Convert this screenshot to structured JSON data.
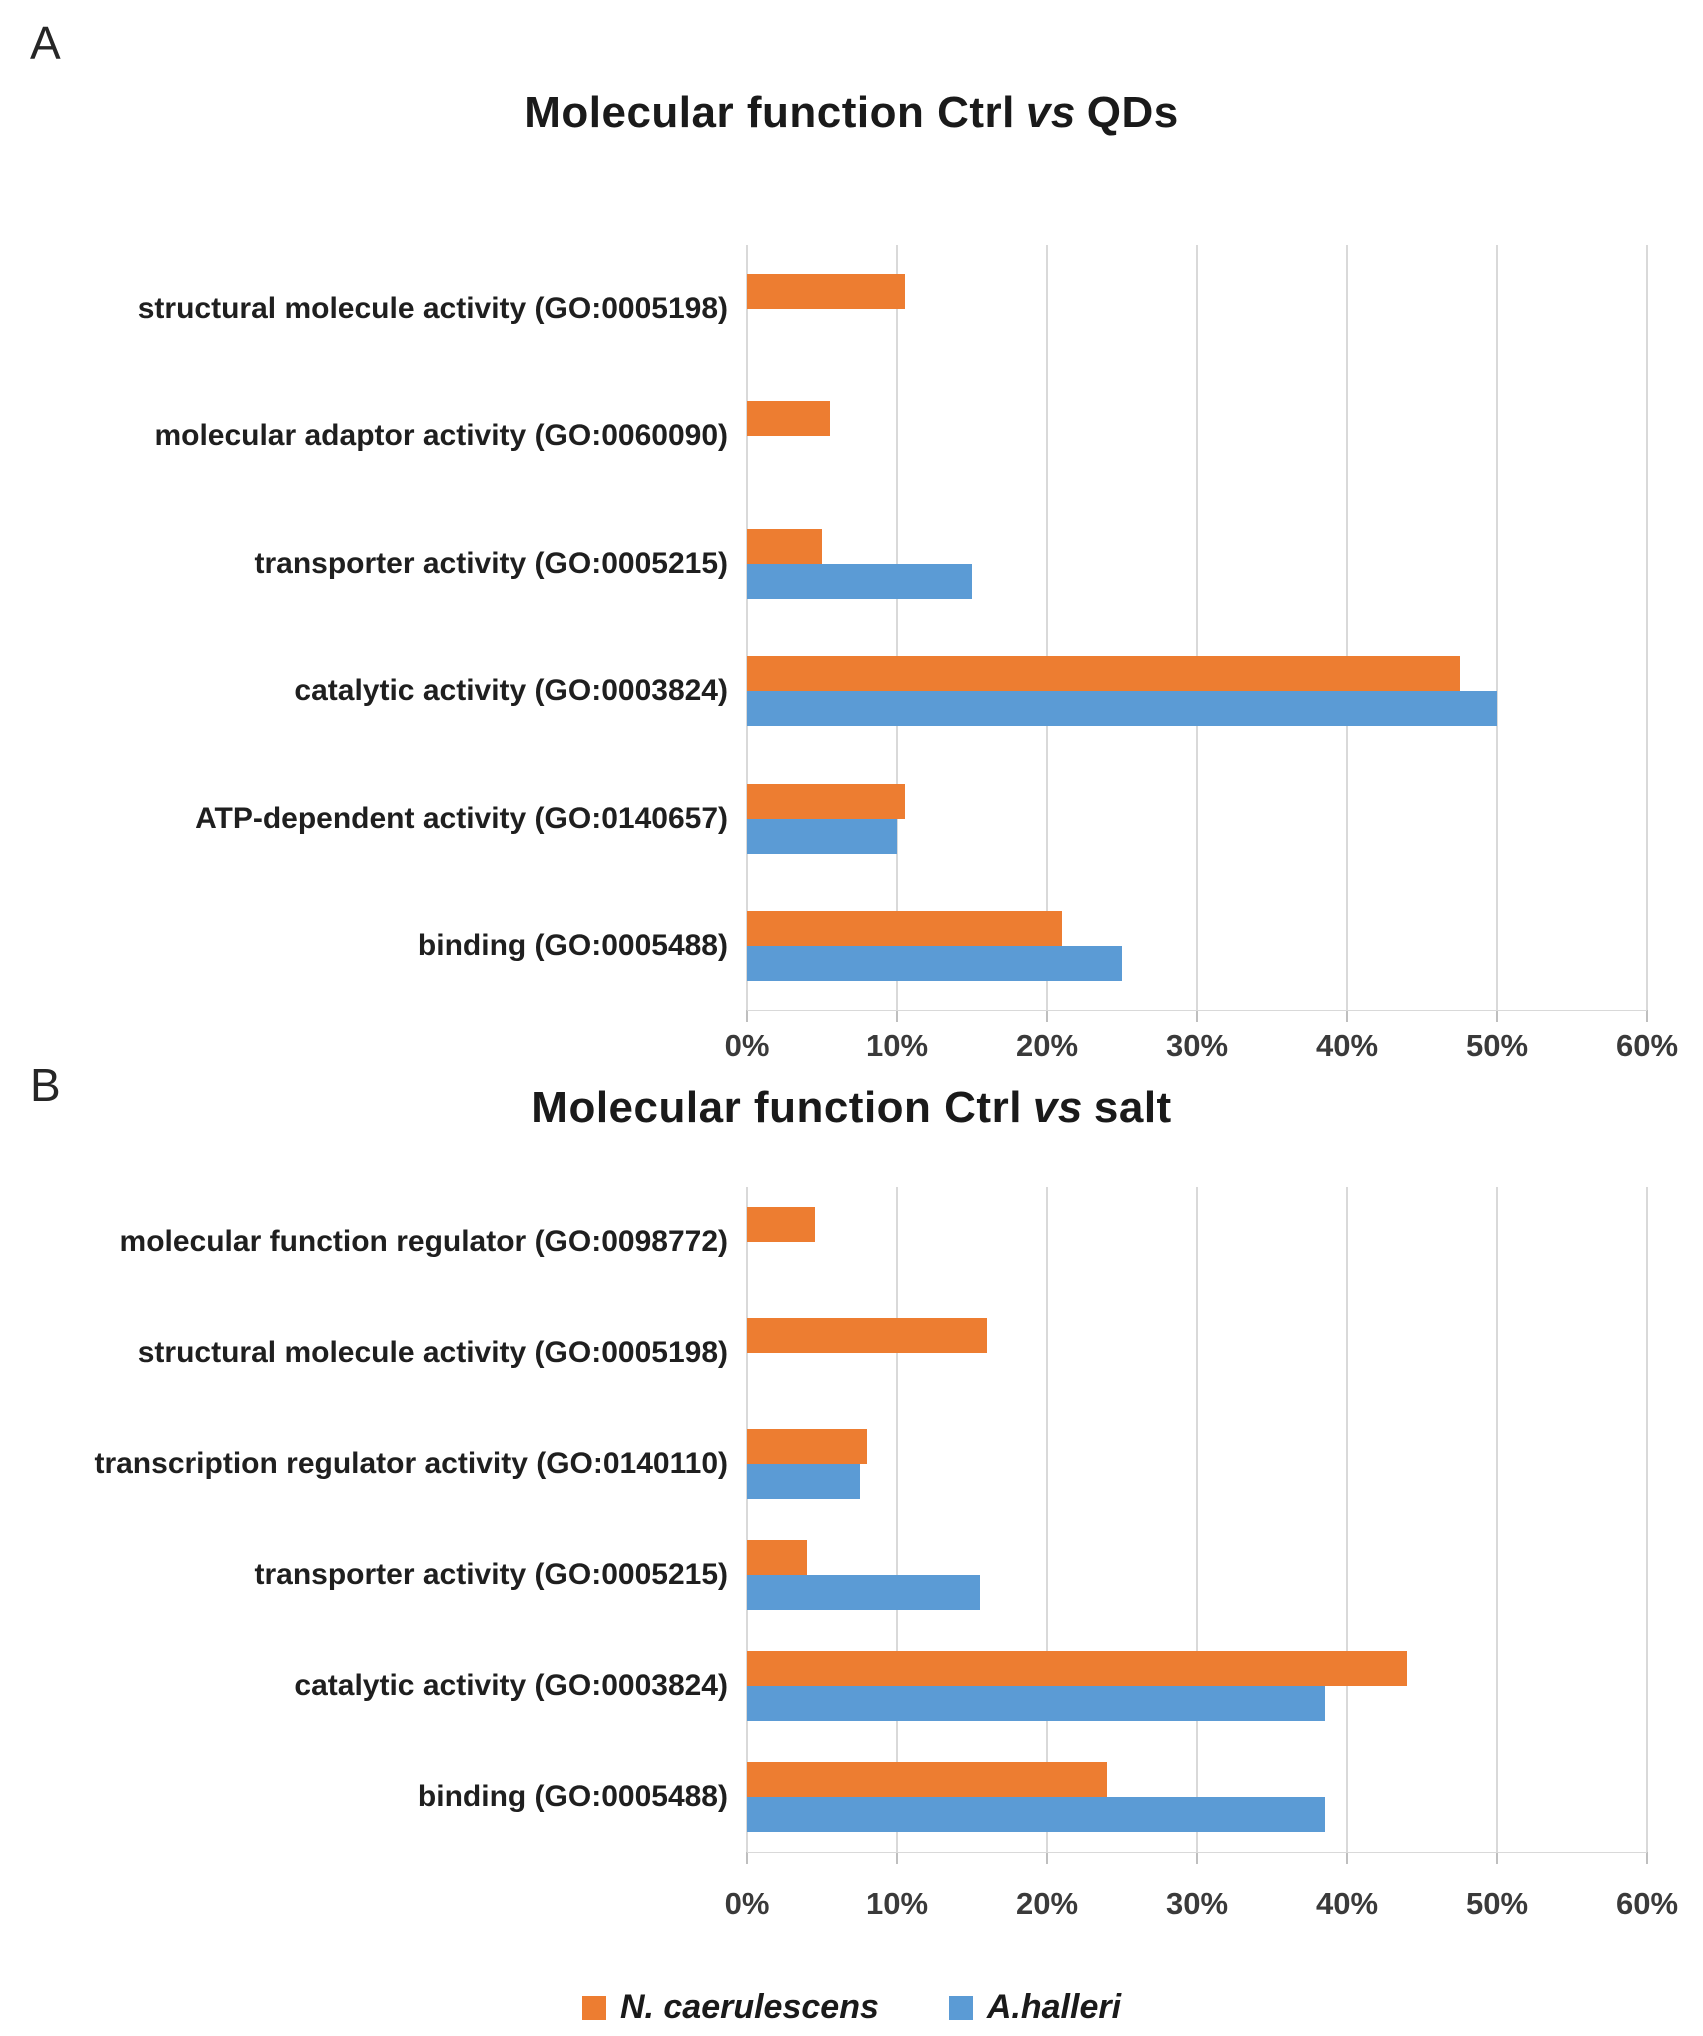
{
  "panels": [
    {
      "panel_label": "A",
      "title_prefix": "Molecular function Ctrl",
      "title_vs": "vs",
      "title_suffix": "QDs"
    },
    {
      "panel_label": "B",
      "title_prefix": "Molecular function Ctrl",
      "title_vs": "vs",
      "title_suffix": "salt"
    }
  ],
  "legend": {
    "items": [
      {
        "label": "N. caerulescens",
        "color": "#ED7D31"
      },
      {
        "label": "A.halleri",
        "color": "#5B9BD5"
      }
    ]
  },
  "colors": {
    "orange": "#ED7D31",
    "blue": "#5B9BD5",
    "gridline": "#D9D9D9"
  },
  "chart_data": [
    {
      "type": "bar",
      "orientation": "horizontal",
      "title": "Molecular function Ctrl vs QDs",
      "categories": [
        "structural molecule activity (GO:0005198)",
        "molecular adaptor activity (GO:0060090)",
        "transporter activity (GO:0005215)",
        "catalytic activity (GO:0003824)",
        "ATP-dependent activity (GO:0140657)",
        "binding (GO:0005488)"
      ],
      "series": [
        {
          "name": "N. caerulescens",
          "color": "#ED7D31",
          "values": [
            10.5,
            5.5,
            5,
            47.5,
            10.5,
            21
          ]
        },
        {
          "name": "A.halleri",
          "color": "#5B9BD5",
          "values": [
            null,
            null,
            15,
            50,
            10,
            25
          ]
        }
      ],
      "x_tick_labels": [
        "0%",
        "10%",
        "20%",
        "30%",
        "40%",
        "50%",
        "60%"
      ],
      "xlim": [
        0,
        60
      ],
      "unit": "percent",
      "grid": true,
      "legend_position": "bottom"
    },
    {
      "type": "bar",
      "orientation": "horizontal",
      "title": "Molecular function Ctrl vs salt",
      "categories": [
        "molecular function regulator (GO:0098772)",
        "structural molecule activity (GO:0005198)",
        "transcription regulator activity (GO:0140110)",
        "transporter activity (GO:0005215)",
        "catalytic activity (GO:0003824)",
        "binding (GO:0005488)"
      ],
      "series": [
        {
          "name": "N. caerulescens",
          "color": "#ED7D31",
          "values": [
            4.5,
            16,
            8,
            4,
            44,
            24
          ]
        },
        {
          "name": "A.halleri",
          "color": "#5B9BD5",
          "values": [
            null,
            null,
            7.5,
            15.5,
            38.5,
            38.5
          ]
        }
      ],
      "x_tick_labels": [
        "0%",
        "10%",
        "20%",
        "30%",
        "40%",
        "50%",
        "60%"
      ],
      "xlim": [
        0,
        60
      ],
      "unit": "percent",
      "grid": true,
      "legend_position": "bottom"
    }
  ]
}
